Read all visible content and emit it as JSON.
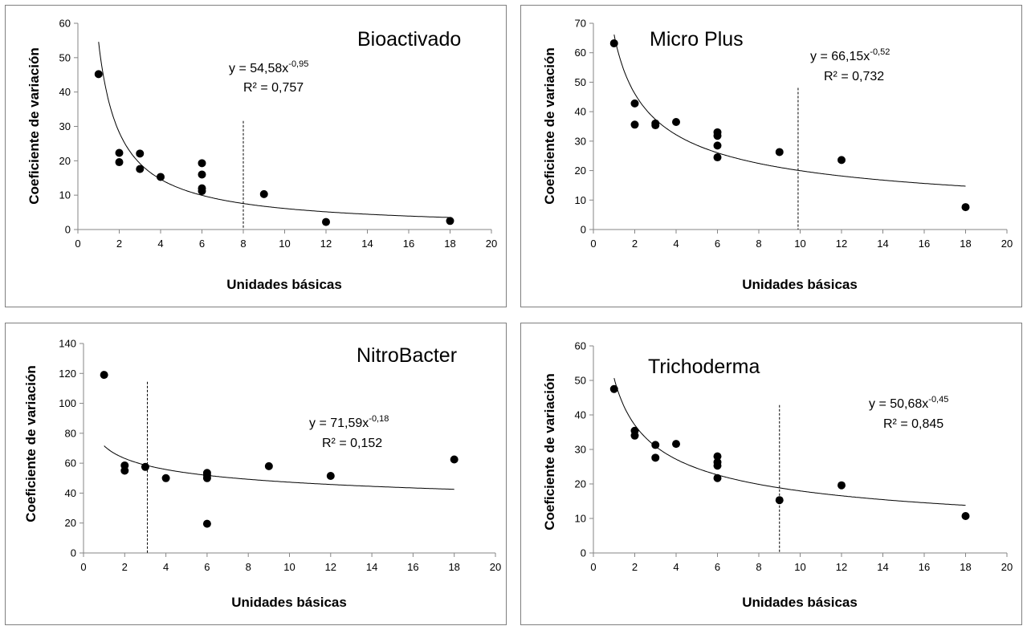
{
  "chart_data": [
    {
      "type": "scatter",
      "title": "Bioactivado",
      "xlabel": "Unidades básicas",
      "ylabel": "Coeficiente de variación",
      "xlim": [
        0,
        20
      ],
      "ylim": [
        0,
        60
      ],
      "xticks": [
        0,
        2,
        4,
        6,
        8,
        10,
        12,
        14,
        16,
        18,
        20
      ],
      "yticks": [
        0,
        10,
        20,
        30,
        40,
        50,
        60
      ],
      "points": [
        [
          1,
          45.2
        ],
        [
          2,
          22.3
        ],
        [
          2,
          19.6
        ],
        [
          3,
          22.1
        ],
        [
          3,
          17.6
        ],
        [
          4,
          15.3
        ],
        [
          6,
          19.3
        ],
        [
          6,
          16.0
        ],
        [
          6,
          12.0
        ],
        [
          6,
          11.2
        ],
        [
          9,
          10.3
        ],
        [
          12,
          2.2
        ],
        [
          18,
          2.5
        ]
      ],
      "trendline": {
        "a": 54.58,
        "b": -0.95
      },
      "equation": "y = 54,58x",
      "exponent": "-0,95",
      "r2": "R² = 0,757",
      "vline_x": 8
    },
    {
      "type": "scatter",
      "title": "Micro Plus",
      "xlabel": "Unidades básicas",
      "ylabel": "Coeficiente de variación",
      "xlim": [
        0,
        20
      ],
      "ylim": [
        0,
        70
      ],
      "xticks": [
        0,
        2,
        4,
        6,
        8,
        10,
        12,
        14,
        16,
        18,
        20
      ],
      "yticks": [
        0,
        10,
        20,
        30,
        40,
        50,
        60,
        70
      ],
      "points": [
        [
          1,
          63.2
        ],
        [
          2,
          42.8
        ],
        [
          2,
          35.6
        ],
        [
          3,
          36.0
        ],
        [
          3,
          35.4
        ],
        [
          4,
          36.5
        ],
        [
          6,
          33.0
        ],
        [
          6,
          31.8
        ],
        [
          6,
          28.5
        ],
        [
          6,
          24.5
        ],
        [
          9,
          26.3
        ],
        [
          12,
          23.6
        ],
        [
          18,
          7.6
        ]
      ],
      "trendline": {
        "a": 66.15,
        "b": -0.52
      },
      "equation": "y = 66,15x",
      "exponent": "-0,52",
      "r2": "R² = 0,732",
      "vline_x": 9.9
    },
    {
      "type": "scatter",
      "title": "NitroBacter",
      "xlabel": "Unidades básicas",
      "ylabel": "Coeficiente de variación",
      "xlim": [
        0,
        20
      ],
      "ylim": [
        0,
        140
      ],
      "xticks": [
        0,
        2,
        4,
        6,
        8,
        10,
        12,
        14,
        16,
        18,
        20
      ],
      "yticks": [
        0,
        20,
        40,
        60,
        80,
        100,
        120,
        140
      ],
      "points": [
        [
          1,
          119
        ],
        [
          2,
          58.5
        ],
        [
          2,
          55
        ],
        [
          3,
          57.5
        ],
        [
          4,
          50
        ],
        [
          6,
          53.5
        ],
        [
          6,
          52
        ],
        [
          6,
          50
        ],
        [
          6,
          19.5
        ],
        [
          9,
          58
        ],
        [
          12,
          51.5
        ],
        [
          18,
          62.5
        ]
      ],
      "trendline": {
        "a": 71.59,
        "b": -0.18
      },
      "equation": "y = 71,59x",
      "exponent": "-0,18",
      "r2": "R² = 0,152",
      "vline_x": 3.1
    },
    {
      "type": "scatter",
      "title": "Trichoderma",
      "xlabel": "Unidades básicas",
      "ylabel": "Coeficiente de variación",
      "xlim": [
        0,
        20
      ],
      "ylim": [
        0,
        60
      ],
      "xticks": [
        0,
        2,
        4,
        6,
        8,
        10,
        12,
        14,
        16,
        18,
        20
      ],
      "yticks": [
        0,
        10,
        20,
        30,
        40,
        50,
        60
      ],
      "points": [
        [
          1,
          47.5
        ],
        [
          2,
          35.4
        ],
        [
          2,
          34.0
        ],
        [
          3,
          31.3
        ],
        [
          3,
          27.6
        ],
        [
          4,
          31.6
        ],
        [
          6,
          28.0
        ],
        [
          6,
          26.3
        ],
        [
          6,
          25.3
        ],
        [
          6,
          21.7
        ],
        [
          9,
          15.3
        ],
        [
          12,
          19.6
        ],
        [
          18,
          10.7
        ]
      ],
      "trendline": {
        "a": 50.68,
        "b": -0.45
      },
      "equation": "y = 50,68x",
      "exponent": "-0,45",
      "r2": "R² = 0,845",
      "vline_x": 9
    }
  ]
}
